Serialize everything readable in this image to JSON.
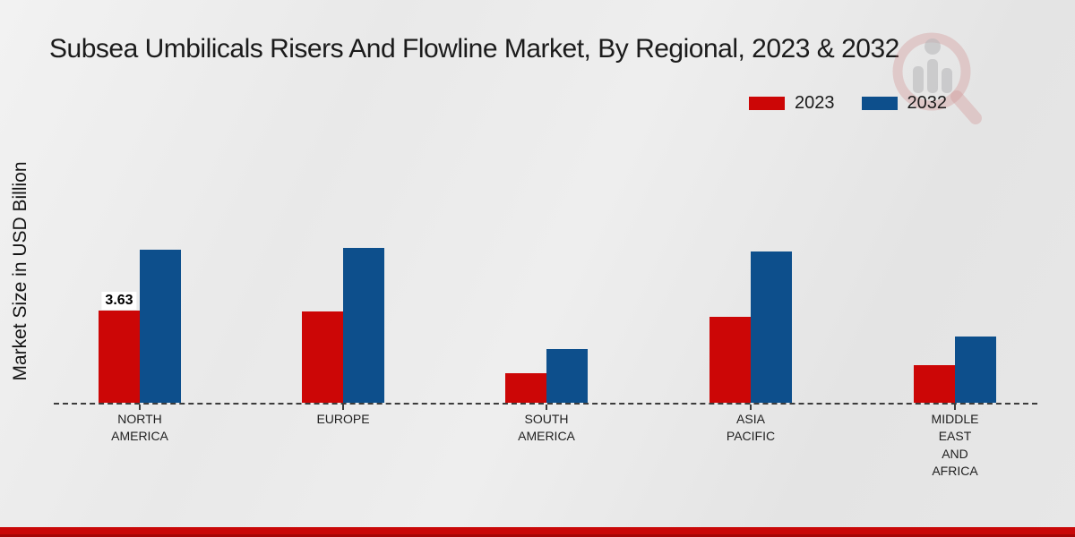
{
  "title": "Subsea Umbilicals Risers And Flowline Market, By Regional, 2023 & 2032",
  "y_axis_label": "Market Size in USD Billion",
  "legend": [
    {
      "label": "2023",
      "color": "#cc0606"
    },
    {
      "label": "2032",
      "color": "#0d4f8c"
    }
  ],
  "brand": {
    "footer_color": "#c90808",
    "watermark": "market-research-magnifier-logo"
  },
  "chart_data": {
    "type": "bar",
    "categories": [
      "NORTH\nAMERICA",
      "EUROPE",
      "SOUTH\nAMERICA",
      "ASIA\nPACIFIC",
      "MIDDLE\nEAST\nAND\nAFRICA"
    ],
    "series": [
      {
        "name": "2023",
        "color": "#cc0606",
        "values": [
          3.63,
          3.6,
          1.16,
          3.38,
          1.48
        ]
      },
      {
        "name": "2032",
        "color": "#0d4f8c",
        "values": [
          6.02,
          6.09,
          2.11,
          5.95,
          2.6
        ]
      }
    ],
    "bar_labels": [
      {
        "series": 0,
        "index": 0,
        "text": "3.63"
      }
    ],
    "title": "Subsea Umbilicals Risers And Flowline Market, By Regional, 2023 & 2032",
    "xlabel": "",
    "ylabel": "Market Size in USD Billion",
    "ylim": [
      0,
      7
    ],
    "grid": false,
    "legend_position": "top-right",
    "baseline_style": "dashed"
  }
}
